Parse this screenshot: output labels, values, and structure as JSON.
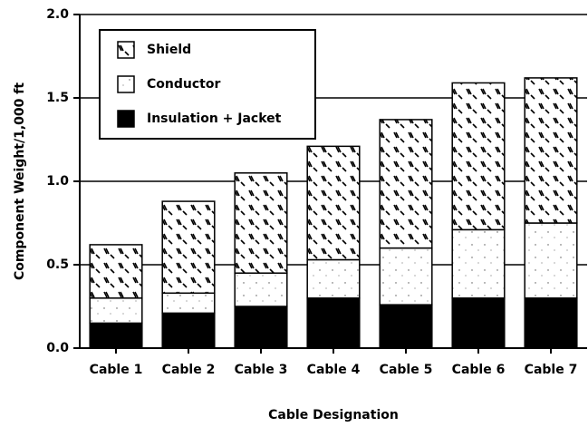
{
  "chart_data": {
    "type": "stacked_bar",
    "xlabel": "Cable Designation",
    "ylabel": "Component Weight/1,000 ft",
    "categories": [
      "Cable 1",
      "Cable 2",
      "Cable 3",
      "Cable 4",
      "Cable 5",
      "Cable 6",
      "Cable 7"
    ],
    "series": [
      {
        "name": "Insulation + Jacket",
        "color": "#000000",
        "values": [
          0.15,
          0.21,
          0.25,
          0.3,
          0.26,
          0.3,
          0.3
        ]
      },
      {
        "name": "Conductor",
        "color": "#ffffff",
        "pattern": "dots",
        "values": [
          0.15,
          0.12,
          0.2,
          0.23,
          0.34,
          0.41,
          0.45
        ]
      },
      {
        "name": "Shield",
        "color": "#ffffff",
        "pattern": "dashes",
        "values": [
          0.32,
          0.55,
          0.6,
          0.68,
          0.77,
          0.88,
          0.87
        ]
      }
    ],
    "ylim": [
      0,
      2.0
    ],
    "yticks": [
      {
        "value": 0,
        "label": "0.0"
      },
      {
        "value": 0.5,
        "label": "0.5"
      },
      {
        "value": 1.0,
        "label": "1.0"
      },
      {
        "value": 1.5,
        "label": "1.5"
      },
      {
        "value": 2.0,
        "label": "2.0"
      }
    ],
    "grid": true,
    "legend": "upper-left"
  }
}
